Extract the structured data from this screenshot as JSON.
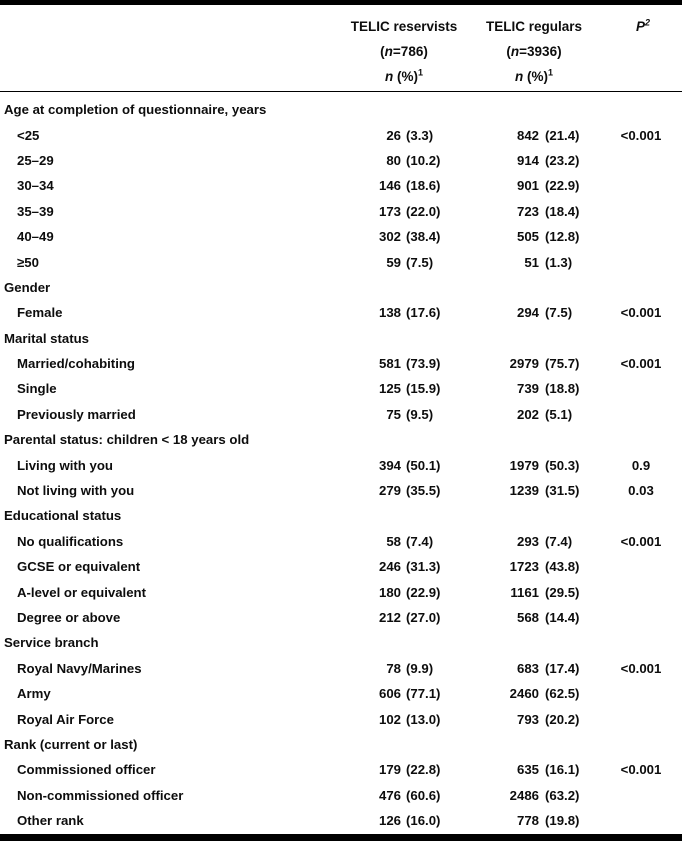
{
  "page": {
    "background": "#ffffff",
    "text_color": "#0d0d0d",
    "rule_color": "#000000"
  },
  "header": {
    "reservists": {
      "title": "TELIC reservists",
      "paren_open": "(",
      "n_symbol": "n",
      "count_suffix": "=786)",
      "stat_n": "n",
      "stat_rest": " (%)",
      "stat_sup": "1"
    },
    "regulars": {
      "title": "TELIC regulars",
      "paren_open": "(",
      "n_symbol": "n",
      "count_suffix": "=3936)",
      "stat_n": "n",
      "stat_rest": " (%)",
      "stat_sup": "1"
    },
    "p_col": {
      "symbol": "P",
      "sup": "2"
    }
  },
  "table": {
    "sections": [
      {
        "label": "Age at completion of questionnaire, years",
        "rows": [
          {
            "label": "<25",
            "res_n": "26",
            "res_pct": "(3.3)",
            "reg_n": "842",
            "reg_pct": "(21.4)",
            "p": "<0.001"
          },
          {
            "label": "25–29",
            "res_n": "80",
            "res_pct": "(10.2)",
            "reg_n": "914",
            "reg_pct": "(23.2)",
            "p": ""
          },
          {
            "label": "30–34",
            "res_n": "146",
            "res_pct": "(18.6)",
            "reg_n": "901",
            "reg_pct": "(22.9)",
            "p": ""
          },
          {
            "label": "35–39",
            "res_n": "173",
            "res_pct": "(22.0)",
            "reg_n": "723",
            "reg_pct": "(18.4)",
            "p": ""
          },
          {
            "label": "40–49",
            "res_n": "302",
            "res_pct": "(38.4)",
            "reg_n": "505",
            "reg_pct": "(12.8)",
            "p": ""
          },
          {
            "label": "≥50",
            "res_n": "59",
            "res_pct": "(7.5)",
            "reg_n": "51",
            "reg_pct": "(1.3)",
            "p": ""
          }
        ]
      },
      {
        "label": "Gender",
        "rows": [
          {
            "label": "Female",
            "res_n": "138",
            "res_pct": "(17.6)",
            "reg_n": "294",
            "reg_pct": "(7.5)",
            "p": "<0.001"
          }
        ]
      },
      {
        "label": "Marital status",
        "rows": [
          {
            "label": "Married/cohabiting",
            "res_n": "581",
            "res_pct": "(73.9)",
            "reg_n": "2979",
            "reg_pct": "(75.7)",
            "p": "<0.001"
          },
          {
            "label": "Single",
            "res_n": "125",
            "res_pct": "(15.9)",
            "reg_n": "739",
            "reg_pct": "(18.8)",
            "p": ""
          },
          {
            "label": "Previously married",
            "res_n": "75",
            "res_pct": "(9.5)",
            "reg_n": "202",
            "reg_pct": "(5.1)",
            "p": ""
          }
        ]
      },
      {
        "label": "Parental status: children < 18 years old",
        "rows": [
          {
            "label": "Living with you",
            "res_n": "394",
            "res_pct": "(50.1)",
            "reg_n": "1979",
            "reg_pct": "(50.3)",
            "p": "0.9"
          },
          {
            "label": "Not living with you",
            "res_n": "279",
            "res_pct": "(35.5)",
            "reg_n": "1239",
            "reg_pct": "(31.5)",
            "p": "0.03"
          }
        ]
      },
      {
        "label": "Educational status",
        "rows": [
          {
            "label": "No qualifications",
            "res_n": "58",
            "res_pct": "(7.4)",
            "reg_n": "293",
            "reg_pct": "(7.4)",
            "p": "<0.001"
          },
          {
            "label": "GCSE or equivalent",
            "res_n": "246",
            "res_pct": "(31.3)",
            "reg_n": "1723",
            "reg_pct": "(43.8)",
            "p": ""
          },
          {
            "label": "A-level or equivalent",
            "res_n": "180",
            "res_pct": "(22.9)",
            "reg_n": "1161",
            "reg_pct": "(29.5)",
            "p": ""
          },
          {
            "label": "Degree or above",
            "res_n": "212",
            "res_pct": "(27.0)",
            "reg_n": "568",
            "reg_pct": "(14.4)",
            "p": ""
          }
        ]
      },
      {
        "label": "Service branch",
        "rows": [
          {
            "label": "Royal Navy/Marines",
            "res_n": "78",
            "res_pct": "(9.9)",
            "reg_n": "683",
            "reg_pct": "(17.4)",
            "p": "<0.001"
          },
          {
            "label": "Army",
            "res_n": "606",
            "res_pct": "(77.1)",
            "reg_n": "2460",
            "reg_pct": "(62.5)",
            "p": ""
          },
          {
            "label": "Royal Air Force",
            "res_n": "102",
            "res_pct": "(13.0)",
            "reg_n": "793",
            "reg_pct": "(20.2)",
            "p": ""
          }
        ]
      },
      {
        "label": "Rank (current or last)",
        "rows": [
          {
            "label": "Commissioned officer",
            "res_n": "179",
            "res_pct": "(22.8)",
            "reg_n": "635",
            "reg_pct": "(16.1)",
            "p": "<0.001"
          },
          {
            "label": "Non-commissioned officer",
            "res_n": "476",
            "res_pct": "(60.6)",
            "reg_n": "2486",
            "reg_pct": "(63.2)",
            "p": ""
          },
          {
            "label": "Other rank",
            "res_n": "126",
            "res_pct": "(16.0)",
            "reg_n": "778",
            "reg_pct": "(19.8)",
            "p": ""
          }
        ]
      }
    ]
  }
}
